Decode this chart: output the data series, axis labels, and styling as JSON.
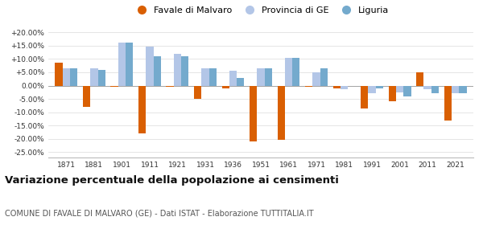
{
  "years": [
    1871,
    1881,
    1901,
    1911,
    1921,
    1931,
    1936,
    1951,
    1961,
    1971,
    1981,
    1991,
    2001,
    2011,
    2021
  ],
  "favale": [
    8.5,
    -8.0,
    -0.5,
    -18.0,
    -0.5,
    -5.0,
    -1.0,
    -21.0,
    -20.5,
    -0.5,
    -1.0,
    -8.5,
    -6.0,
    5.0,
    -13.0
  ],
  "provincia": [
    6.5,
    6.5,
    16.0,
    14.5,
    12.0,
    6.5,
    5.5,
    6.5,
    10.5,
    5.0,
    -1.5,
    -3.0,
    -2.5,
    -1.5,
    -3.0
  ],
  "liguria": [
    6.5,
    6.0,
    16.0,
    11.0,
    11.0,
    6.5,
    3.0,
    6.5,
    10.5,
    6.5,
    0.0,
    -1.0,
    -4.0,
    -3.0,
    -3.0
  ],
  "color_favale": "#d95f02",
  "color_provincia": "#b3c6e7",
  "color_liguria": "#74aacd",
  "title": "Variazione percentuale della popolazione ai censimenti",
  "subtitle": "COMUNE DI FAVALE DI MALVARO (GE) - Dati ISTAT - Elaborazione TUTTITALIA.IT",
  "legend_labels": [
    "Favale di Malvaro",
    "Provincia di GE",
    "Liguria"
  ],
  "ylim": [
    -27,
    22
  ],
  "yticks": [
    -25,
    -20,
    -15,
    -10,
    -5,
    0,
    5,
    10,
    15,
    20
  ],
  "ytick_labels": [
    "-25.00%",
    "-20.00%",
    "-15.00%",
    "-10.00%",
    "-5.00%",
    "0.00%",
    "+5.00%",
    "+10.00%",
    "+15.00%",
    "+20.00%"
  ],
  "background_color": "#ffffff",
  "grid_color": "#e0e0e0"
}
